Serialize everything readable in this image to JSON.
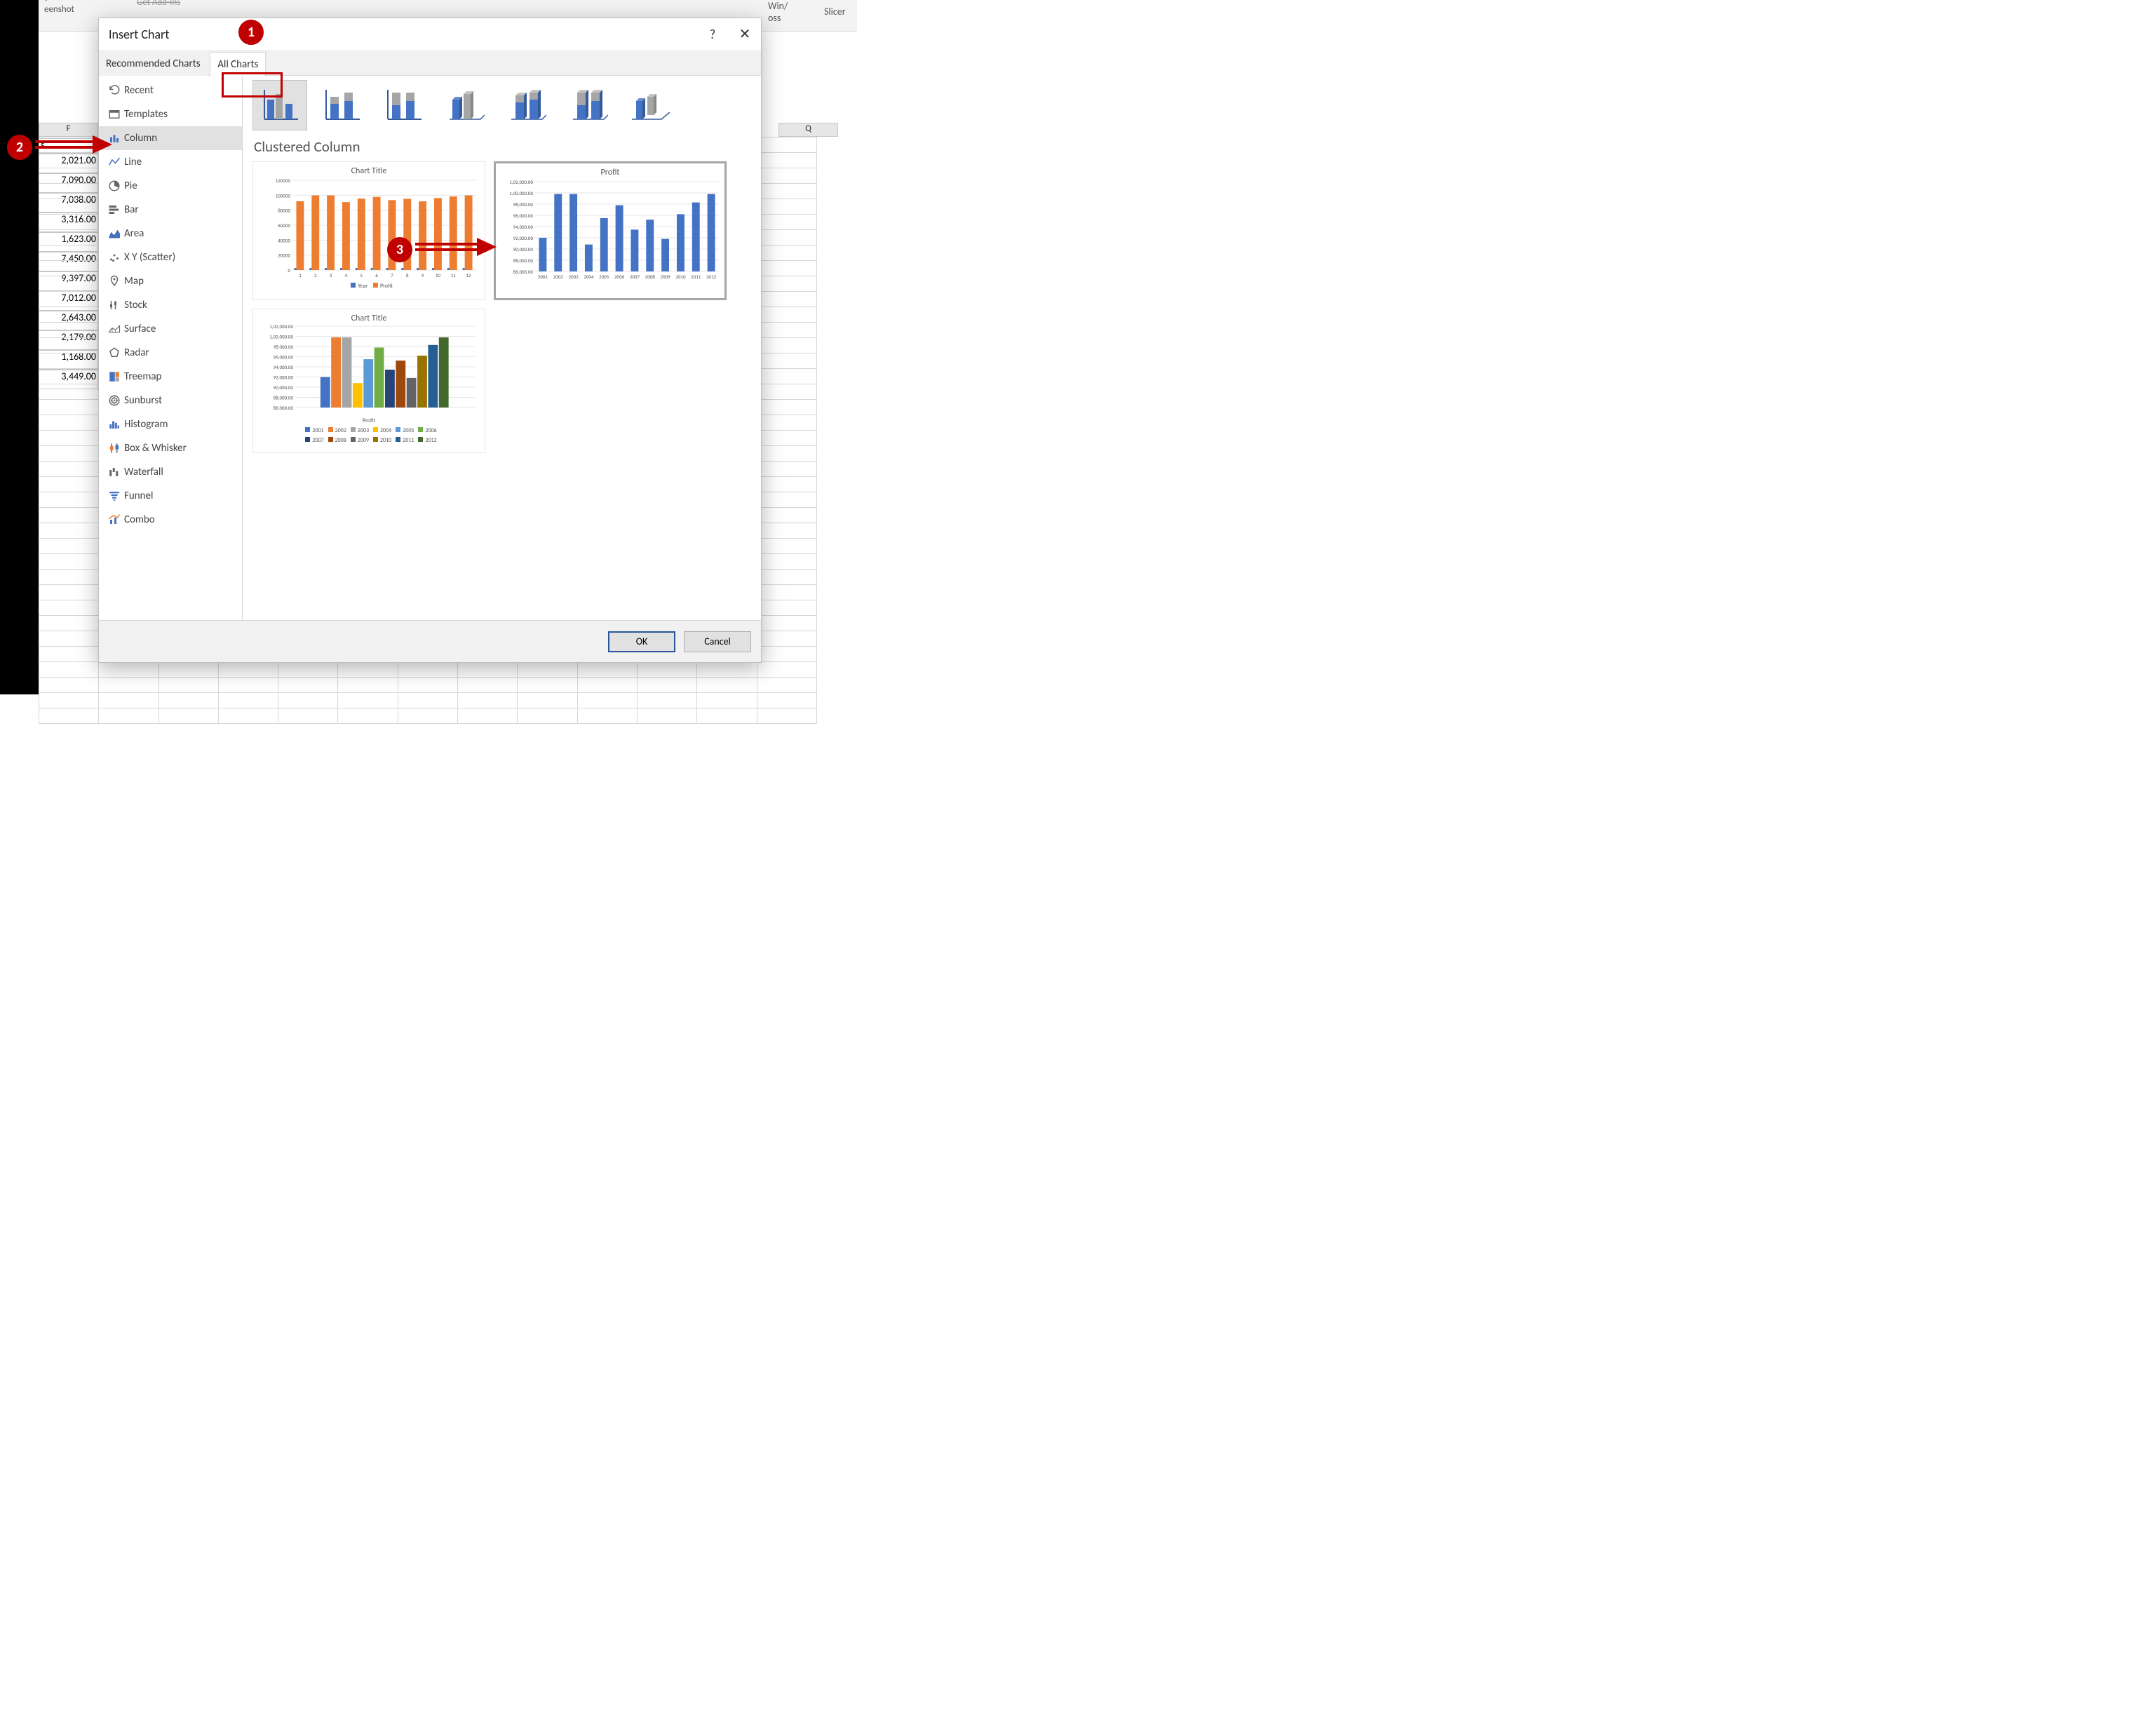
{
  "ribbon": {
    "screenshot_label": "eenshot",
    "addins_label": "Get Add-Ins",
    "winloss_label": "Win/\noss",
    "slicer_label": "Slicer"
  },
  "sheet": {
    "col_f": "F",
    "col_q": "Q",
    "row_hdr": "s",
    "values": [
      "2,021.00",
      "7,090.00",
      "7,038.00",
      "3,316.00",
      "1,623.00",
      "7,450.00",
      "9,397.00",
      "7,012.00",
      "2,643.00",
      "2,179.00",
      "1,168.00",
      "3,449.00"
    ]
  },
  "dialog": {
    "title": "Insert Chart",
    "tab_rec": "Recommended Charts",
    "tab_all": "All Charts",
    "sidebar": [
      "Recent",
      "Templates",
      "Column",
      "Line",
      "Pie",
      "Bar",
      "Area",
      "X Y (Scatter)",
      "Map",
      "Stock",
      "Surface",
      "Radar",
      "Treemap",
      "Sunburst",
      "Histogram",
      "Box & Whisker",
      "Waterfall",
      "Funnel",
      "Combo"
    ],
    "chart_type_title": "Clustered Column",
    "preview1": {
      "title": "Chart Title",
      "legend": [
        "Year",
        "Profit"
      ],
      "legend_colors": [
        "#4472c4",
        "#ed7d31"
      ],
      "ylabels": [
        "0",
        "20000",
        "40000",
        "60000",
        "80000",
        "100000",
        "120000"
      ],
      "xlabels": [
        "1",
        "2",
        "3",
        "4",
        "5",
        "6",
        "7",
        "8",
        "9",
        "10",
        "11",
        "12"
      ],
      "values": [
        92000,
        99800,
        99800,
        90800,
        95500,
        97800,
        93450,
        95230,
        91800,
        96200,
        98300,
        99800
      ],
      "bar_color": "#ed7d31"
    },
    "preview2": {
      "title": "Profit",
      "ylabels": [
        "86,000.00",
        "88,000.00",
        "90,000.00",
        "92,000.00",
        "94,000.00",
        "96,000.00",
        "98,000.00",
        "1,00,000.00",
        "1,02,000.00"
      ],
      "xlabels": [
        "2001",
        "2002",
        "2003",
        "2004",
        "2005",
        "2006",
        "2007",
        "2008",
        "2009",
        "2010",
        "2011",
        "2012"
      ],
      "values": [
        92000,
        99800,
        99800,
        90800,
        95500,
        97800,
        93450,
        95230,
        91800,
        96200,
        98300,
        99800
      ],
      "bar_color": "#4472c4"
    },
    "preview3": {
      "title": "Chart Title",
      "subtitle": "Profit",
      "ylabels": [
        "86,000.00",
        "88,000.00",
        "90,000.00",
        "92,000.00",
        "94,000.00",
        "96,000.00",
        "98,000.00",
        "1,00,000.00",
        "1,02,000.00"
      ],
      "xlabels": [
        "",
        ""
      ],
      "values": [
        92000,
        99800,
        99800,
        90800,
        95500,
        97800,
        93450,
        95230,
        91800,
        96200,
        98300,
        99800
      ],
      "colors": [
        "#4472c4",
        "#ed7d31",
        "#a5a5a5",
        "#ffc000",
        "#5b9bd5",
        "#70ad47",
        "#264478",
        "#9e480e",
        "#636363",
        "#997300",
        "#255e91",
        "#43682b"
      ],
      "legend": [
        "2001",
        "2002",
        "2003",
        "2004",
        "2005",
        "2006",
        "2007",
        "2008",
        "2009",
        "2010",
        "2011",
        "2012"
      ]
    },
    "ok": "OK",
    "cancel": "Cancel"
  },
  "ann": {
    "n1": "1",
    "n2": "2",
    "n3": "3"
  }
}
